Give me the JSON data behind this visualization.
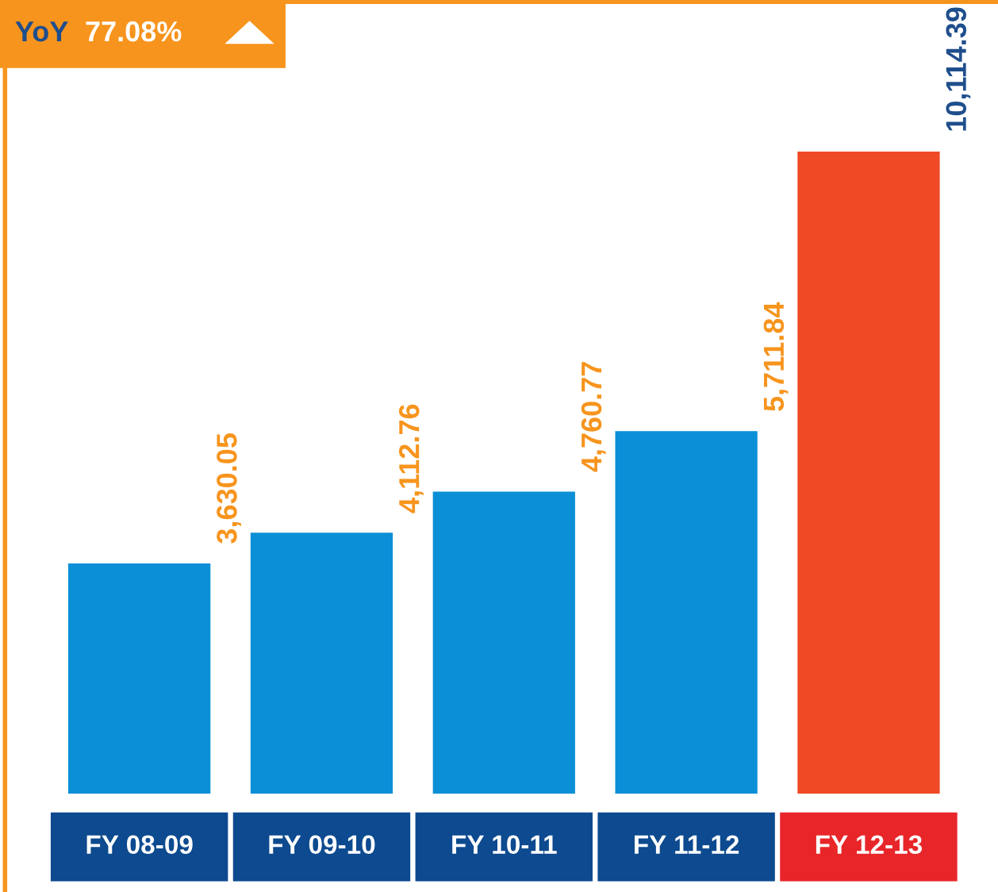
{
  "chart_data": {
    "type": "bar",
    "categories": [
      "FY 08-09",
      "FY 09-10",
      "FY 10-11",
      "FY 11-12",
      "FY 12-13"
    ],
    "values": [
      3630.05,
      4112.76,
      4760.77,
      5711.84,
      10114.39
    ],
    "colors": [
      "#0b8fd6",
      "#0b8fd6",
      "#0b8fd6",
      "#0b8fd6",
      "#ef4a25"
    ],
    "value_labels": [
      "3,630.05",
      "4,112.76",
      "4,760.77",
      "5,711.84",
      "10,114.39"
    ],
    "annotations": [
      "YoY",
      "77.08%"
    ]
  }
}
